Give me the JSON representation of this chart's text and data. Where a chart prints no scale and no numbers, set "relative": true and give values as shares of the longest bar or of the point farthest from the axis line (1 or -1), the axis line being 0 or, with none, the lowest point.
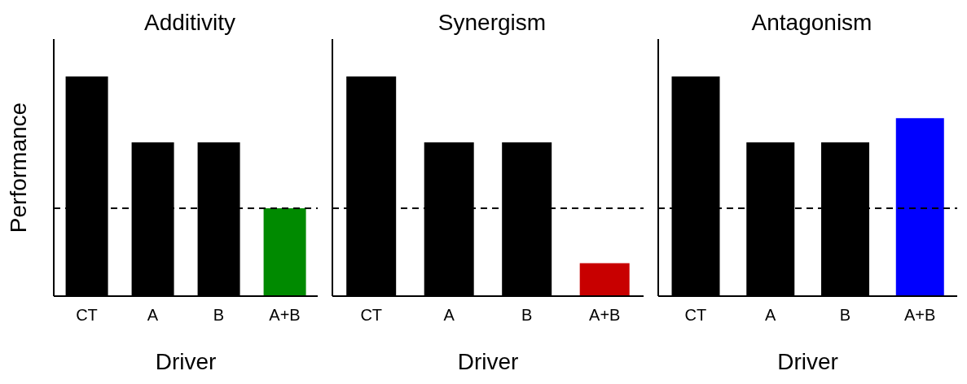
{
  "chart_data": [
    {
      "type": "bar",
      "title": "Additivity",
      "xlabel": "Driver",
      "ylabel": "Performance",
      "categories": [
        "CT",
        "A",
        "B",
        "A+B"
      ],
      "values": [
        1,
        0.7,
        0.7,
        0.4
      ],
      "colors": [
        "#000000",
        "#000000",
        "#000000",
        "#008a00"
      ],
      "relative": true,
      "grid": false,
      "ref_lines": [
        {
          "axis": "y",
          "value": 0.4,
          "color": "#000000",
          "line_style": "dashed"
        }
      ]
    },
    {
      "type": "bar",
      "title": "Synergism",
      "xlabel": "Driver",
      "categories": [
        "CT",
        "A",
        "B",
        "A+B"
      ],
      "values": [
        1,
        0.7,
        0.7,
        0.15
      ],
      "colors": [
        "#000000",
        "#000000",
        "#000000",
        "#c80000"
      ],
      "relative": true,
      "grid": false,
      "ref_lines": [
        {
          "axis": "y",
          "value": 0.4,
          "color": "#000000",
          "line_style": "dashed"
        }
      ]
    },
    {
      "type": "bar",
      "title": "Antagonism",
      "xlabel": "Driver",
      "categories": [
        "CT",
        "A",
        "B",
        "A+B"
      ],
      "values": [
        1,
        0.7,
        0.7,
        0.81
      ],
      "colors": [
        "#000000",
        "#000000",
        "#000000",
        "#0000ff"
      ],
      "relative": true,
      "grid": false,
      "ref_lines": [
        {
          "axis": "y",
          "value": 0.4,
          "color": "#000000",
          "line_style": "dashed"
        }
      ]
    }
  ]
}
